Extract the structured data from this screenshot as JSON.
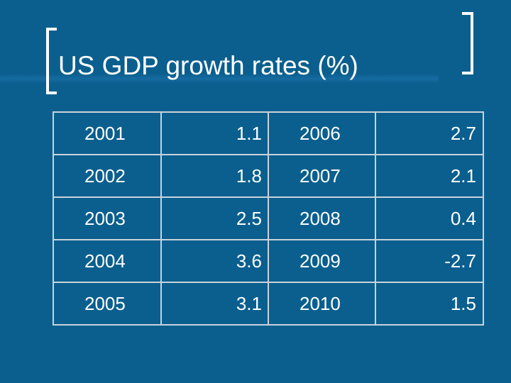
{
  "slide": {
    "title": "US GDP growth rates (%)",
    "background_color": "#0a5f8e",
    "text_color": "#ffffff",
    "border_color": "#c9d3db"
  },
  "table": {
    "rows": [
      {
        "year_a": "2001",
        "rate_a": "1.1",
        "year_b": "2006",
        "rate_b": "2.7"
      },
      {
        "year_a": "2002",
        "rate_a": "1.8",
        "year_b": "2007",
        "rate_b": "2.1"
      },
      {
        "year_a": "2003",
        "rate_a": "2.5",
        "year_b": "2008",
        "rate_b": "0.4"
      },
      {
        "year_a": "2004",
        "rate_a": "3.6",
        "year_b": "2009",
        "rate_b": "-2.7"
      },
      {
        "year_a": "2005",
        "rate_a": "3.1",
        "year_b": "2010",
        "rate_b": "1.5"
      }
    ]
  }
}
